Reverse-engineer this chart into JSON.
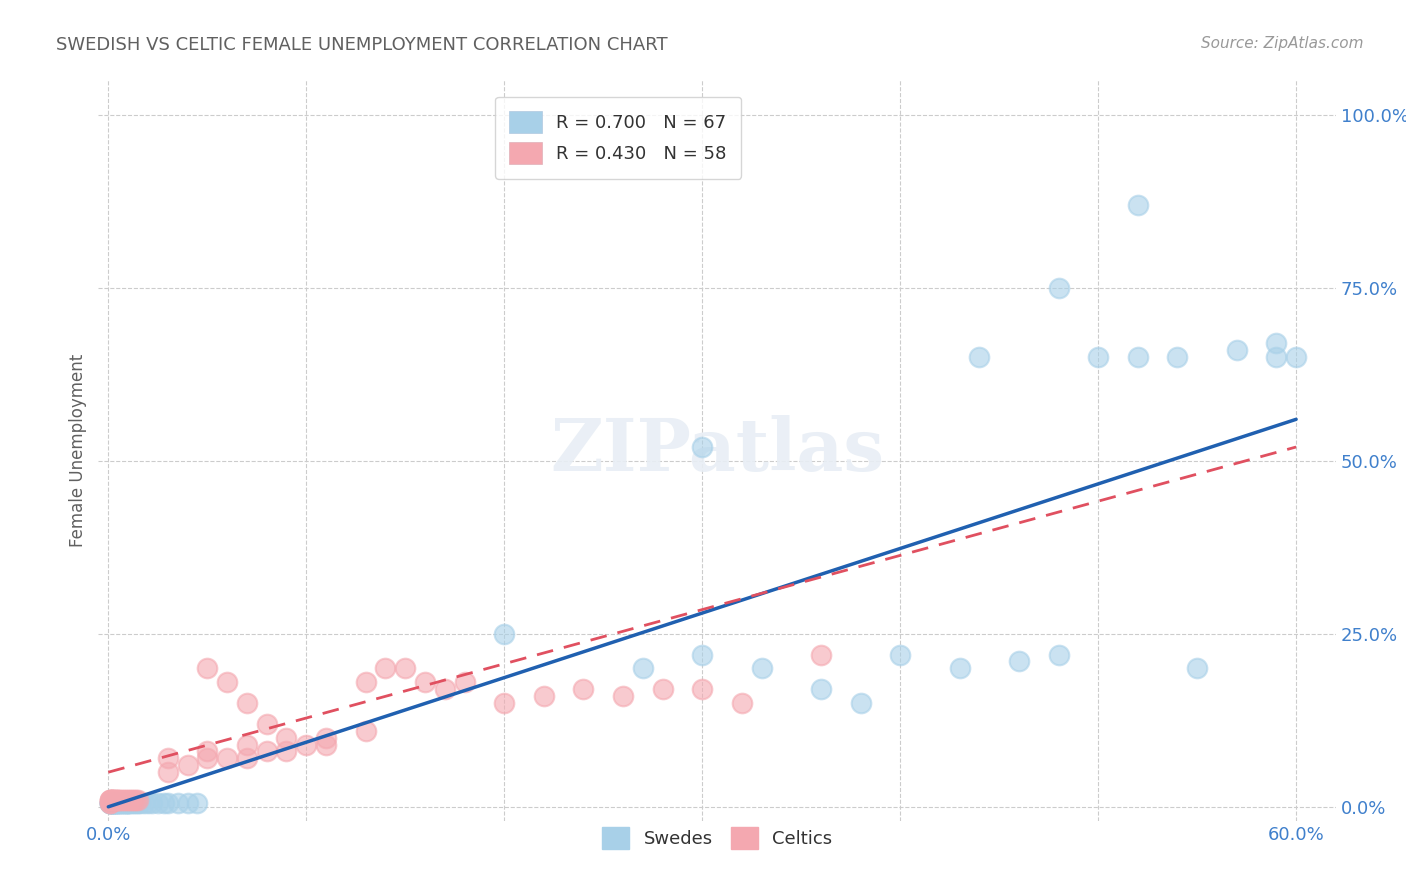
{
  "title": "SWEDISH VS CELTIC FEMALE UNEMPLOYMENT CORRELATION CHART",
  "source": "Source: ZipAtlas.com",
  "ylabel": "Female Unemployment",
  "ytick_labels": [
    "0.0%",
    "25.0%",
    "50.0%",
    "75.0%",
    "100.0%"
  ],
  "ytick_values": [
    0.0,
    0.25,
    0.5,
    0.75,
    1.0
  ],
  "xtick_labels": [
    "0.0%",
    "",
    "",
    "",
    "",
    "",
    "60.0%"
  ],
  "xtick_values": [
    0.0,
    0.1,
    0.2,
    0.3,
    0.4,
    0.5,
    0.6
  ],
  "xlim": [
    -0.005,
    0.62
  ],
  "ylim": [
    -0.02,
    1.05
  ],
  "swedes_R": 0.7,
  "swedes_N": 67,
  "celtics_R": 0.43,
  "celtics_N": 58,
  "blue_color": "#a8d0e8",
  "pink_color": "#f4a8b0",
  "blue_fill": "#a8d0e8",
  "pink_fill": "#f4a8b0",
  "blue_line_color": "#2060b0",
  "pink_line_color": "#e05060",
  "background_color": "#ffffff",
  "grid_color": "#cccccc",
  "title_color": "#606060",
  "axis_tick_color": "#4080cc",
  "ylabel_color": "#606060",
  "source_color": "#999999",
  "legend_R_color": "#333333",
  "legend_N_color": "#4477cc",
  "sw_line_x": [
    0.0,
    0.6
  ],
  "sw_line_y": [
    0.0,
    0.56
  ],
  "cel_line_x": [
    0.0,
    0.6
  ],
  "cel_line_y": [
    0.05,
    0.52
  ],
  "swedes_x": [
    0.001,
    0.001,
    0.001,
    0.001,
    0.001,
    0.002,
    0.002,
    0.002,
    0.002,
    0.003,
    0.003,
    0.003,
    0.003,
    0.004,
    0.004,
    0.004,
    0.005,
    0.005,
    0.005,
    0.006,
    0.006,
    0.007,
    0.007,
    0.008,
    0.008,
    0.009,
    0.009,
    0.01,
    0.01,
    0.01,
    0.011,
    0.012,
    0.013,
    0.014,
    0.015,
    0.016,
    0.018,
    0.02,
    0.022,
    0.025,
    0.028,
    0.03,
    0.035,
    0.04,
    0.045,
    0.27,
    0.3,
    0.33,
    0.36,
    0.4,
    0.43,
    0.46,
    0.48,
    0.5,
    0.52,
    0.54,
    0.57,
    0.59,
    0.59,
    0.6,
    0.3,
    0.55,
    0.2,
    0.52,
    0.48,
    0.44,
    0.38
  ],
  "swedes_y": [
    0.005,
    0.005,
    0.005,
    0.005,
    0.005,
    0.005,
    0.005,
    0.005,
    0.005,
    0.005,
    0.005,
    0.005,
    0.005,
    0.005,
    0.005,
    0.005,
    0.005,
    0.005,
    0.005,
    0.005,
    0.005,
    0.005,
    0.005,
    0.005,
    0.005,
    0.005,
    0.005,
    0.005,
    0.005,
    0.005,
    0.005,
    0.005,
    0.005,
    0.005,
    0.005,
    0.005,
    0.005,
    0.005,
    0.005,
    0.005,
    0.005,
    0.005,
    0.005,
    0.005,
    0.005,
    0.2,
    0.22,
    0.2,
    0.17,
    0.22,
    0.2,
    0.21,
    0.22,
    0.65,
    0.65,
    0.65,
    0.66,
    0.65,
    0.67,
    0.65,
    0.52,
    0.2,
    0.25,
    0.87,
    0.75,
    0.65,
    0.15
  ],
  "celtics_x": [
    0.001,
    0.001,
    0.001,
    0.001,
    0.001,
    0.002,
    0.002,
    0.002,
    0.002,
    0.003,
    0.003,
    0.004,
    0.004,
    0.005,
    0.005,
    0.006,
    0.007,
    0.008,
    0.009,
    0.01,
    0.011,
    0.012,
    0.013,
    0.014,
    0.015,
    0.03,
    0.05,
    0.07,
    0.09,
    0.11,
    0.08,
    0.1,
    0.04,
    0.06,
    0.03,
    0.05,
    0.07,
    0.09,
    0.11,
    0.13,
    0.05,
    0.06,
    0.07,
    0.08,
    0.13,
    0.14,
    0.15,
    0.16,
    0.17,
    0.18,
    0.2,
    0.22,
    0.24,
    0.26,
    0.28,
    0.3,
    0.32,
    0.36
  ],
  "celtics_y": [
    0.005,
    0.005,
    0.01,
    0.01,
    0.01,
    0.01,
    0.01,
    0.01,
    0.01,
    0.01,
    0.01,
    0.01,
    0.01,
    0.01,
    0.01,
    0.01,
    0.01,
    0.01,
    0.01,
    0.01,
    0.01,
    0.01,
    0.01,
    0.01,
    0.01,
    0.05,
    0.07,
    0.07,
    0.08,
    0.09,
    0.08,
    0.09,
    0.06,
    0.07,
    0.07,
    0.08,
    0.09,
    0.1,
    0.1,
    0.11,
    0.2,
    0.18,
    0.15,
    0.12,
    0.18,
    0.2,
    0.2,
    0.18,
    0.17,
    0.18,
    0.15,
    0.16,
    0.17,
    0.16,
    0.17,
    0.17,
    0.15,
    0.22
  ]
}
